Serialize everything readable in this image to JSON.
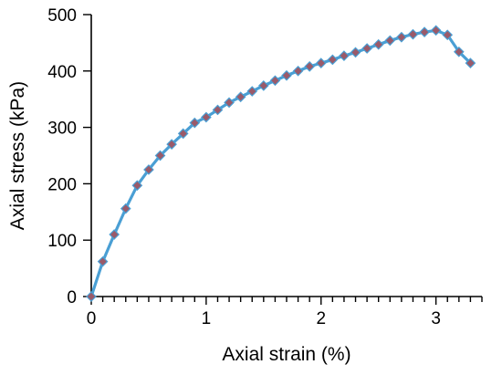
{
  "chart_data": {
    "type": "line",
    "title": "",
    "xlabel": "Axial strain (%)",
    "ylabel": "Axial stress (kPa)",
    "xlim": [
      0,
      3.4
    ],
    "ylim": [
      0,
      500
    ],
    "xticks": [
      0,
      1,
      2,
      3
    ],
    "yticks": [
      0,
      100,
      200,
      300,
      400,
      500
    ],
    "grid": false,
    "legend": "none",
    "series": [
      {
        "line_color": "#4a9fd4",
        "marker_color": "#9a5a6a",
        "marker": "diamond",
        "x": [
          0,
          0.1,
          0.2,
          0.3,
          0.4,
          0.5,
          0.6,
          0.7,
          0.8,
          0.9,
          1.0,
          1.1,
          1.2,
          1.3,
          1.4,
          1.5,
          1.6,
          1.7,
          1.8,
          1.9,
          2.0,
          2.1,
          2.2,
          2.3,
          2.4,
          2.5,
          2.6,
          2.7,
          2.8,
          2.9,
          3.0,
          3.1,
          3.2,
          3.3
        ],
        "y": [
          0,
          62,
          110,
          156,
          197,
          225,
          250,
          270,
          289,
          308,
          318,
          331,
          344,
          354,
          364,
          374,
          383,
          392,
          400,
          408,
          414,
          420,
          427,
          433,
          440,
          447,
          454,
          460,
          465,
          469,
          472,
          464,
          434,
          414
        ]
      }
    ]
  }
}
